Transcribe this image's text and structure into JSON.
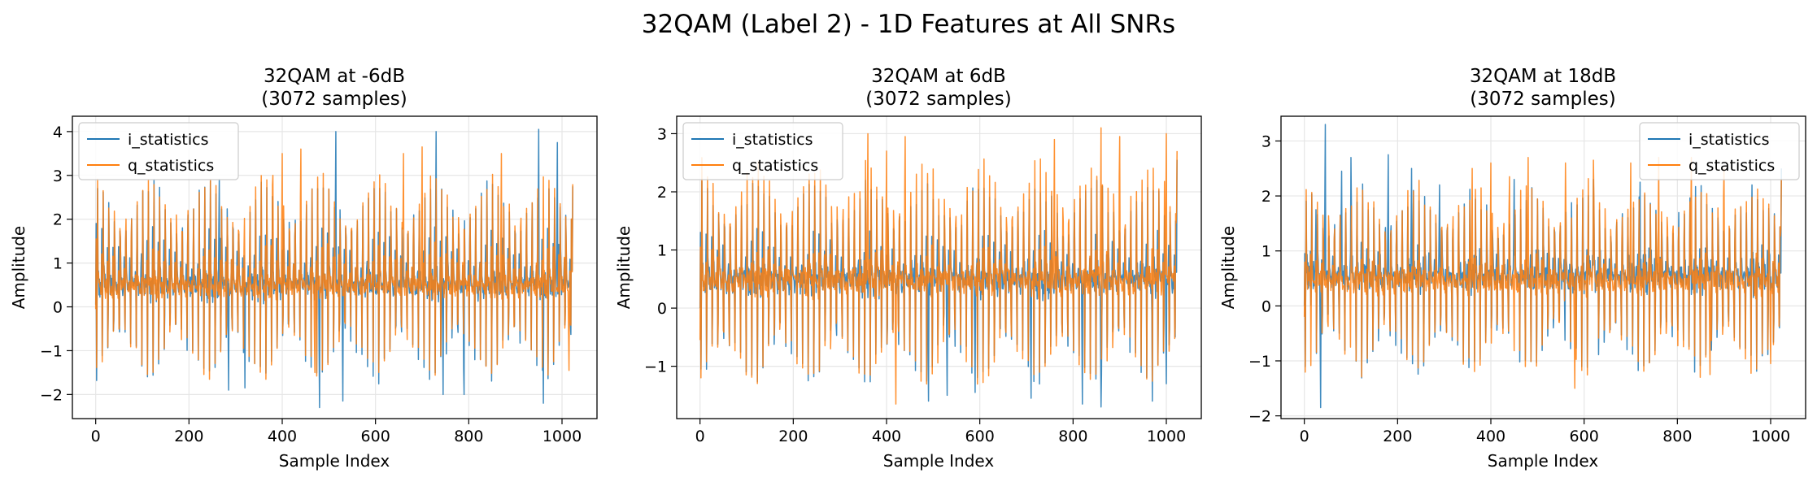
{
  "figure": {
    "suptitle": "32QAM (Label 2) - 1D Features at All SNRs"
  },
  "colors": {
    "i_statistics": "#1f77b4",
    "q_statistics": "#ff7f0e",
    "grid": "#e6e6e6",
    "axes": "#000000"
  },
  "chart_data": [
    {
      "type": "line",
      "title_line1": "32QAM at -6dB",
      "title_line2": "(3072 samples)",
      "xlabel": "Sample Index",
      "ylabel": "Amplitude",
      "xlim": [
        -50,
        1075
      ],
      "ylim": [
        -2.55,
        4.35
      ],
      "xticks": [
        0,
        200,
        400,
        600,
        800,
        1000
      ],
      "yticks": [
        -2,
        -1,
        0,
        1,
        2,
        3,
        4
      ],
      "ytick_labels": [
        "−2",
        "−1",
        "0",
        "1",
        "2",
        "3",
        "4"
      ],
      "grid": true,
      "legend_position": "upper-left",
      "n_points": 1024,
      "period": 12.1,
      "series": [
        {
          "name": "i_statistics",
          "color": "#1f77b4",
          "start_value": 0.05,
          "end_value": 2.75,
          "profile": [
            0.5,
            1.75,
            -1.65,
            0.4,
            2.9,
            0.6,
            0.8,
            0.3,
            0.7,
            0.2,
            0.6,
            0.4
          ],
          "peaks": [
            [
              265,
              2.9
            ],
            [
              285,
              -1.9
            ],
            [
              320,
              -1.85
            ],
            [
              480,
              -2.3
            ],
            [
              515,
              4.0
            ],
            [
              530,
              -2.15
            ],
            [
              730,
              4.0
            ],
            [
              745,
              -2.0
            ],
            [
              790,
              -2.0
            ],
            [
              950,
              4.05
            ],
            [
              960,
              -2.2
            ],
            [
              990,
              3.75
            ],
            [
              1005,
              1.1
            ]
          ]
        },
        {
          "name": "q_statistics",
          "color": "#ff7f0e",
          "start_value": -0.05,
          "end_value": 2.8,
          "profile": [
            0.3,
            1.4,
            -1.6,
            0.5,
            3.0,
            0.55,
            0.7,
            0.4,
            0.6,
            0.3,
            0.5,
            0.45
          ],
          "peaks": [
            [
              380,
              3.0
            ],
            [
              400,
              3.5
            ],
            [
              440,
              3.6
            ],
            [
              470,
              -1.5
            ],
            [
              660,
              3.5
            ],
            [
              700,
              3.65
            ],
            [
              870,
              3.5
            ],
            [
              1015,
              -1.45
            ]
          ]
        }
      ]
    },
    {
      "type": "line",
      "title_line1": "32QAM at 6dB",
      "title_line2": "(3072 samples)",
      "xlabel": "Sample Index",
      "ylabel": "Amplitude",
      "xlim": [
        -50,
        1075
      ],
      "ylim": [
        -1.9,
        3.3
      ],
      "xticks": [
        0,
        200,
        400,
        600,
        800,
        1000
      ],
      "yticks": [
        -1,
        0,
        1,
        2,
        3
      ],
      "ytick_labels": [
        "−1",
        "0",
        "1",
        "2",
        "3"
      ],
      "grid": true,
      "legend_position": "upper-left",
      "n_points": 1024,
      "period": 12.1,
      "series": [
        {
          "name": "i_statistics",
          "color": "#1f77b4",
          "start_value": 0.0,
          "end_value": 2.55,
          "profile": [
            0.45,
            1.25,
            -1.25,
            0.3,
            2.2,
            0.5,
            0.75,
            0.35,
            0.6,
            0.25,
            0.55,
            0.4
          ],
          "peaks": [
            [
              490,
              -1.6
            ],
            [
              530,
              -1.5
            ],
            [
              590,
              -1.45
            ],
            [
              710,
              -1.55
            ],
            [
              820,
              -1.65
            ],
            [
              860,
              -1.7
            ],
            [
              970,
              -1.6
            ],
            [
              1000,
              -1.3
            ]
          ]
        },
        {
          "name": "q_statistics",
          "color": "#ff7f0e",
          "start_value": -0.55,
          "end_value": 2.7,
          "profile": [
            0.3,
            1.0,
            -1.3,
            0.4,
            2.5,
            0.5,
            0.65,
            0.45,
            0.55,
            0.35,
            0.5,
            0.45
          ],
          "peaks": [
            [
              360,
              3.0
            ],
            [
              400,
              2.7
            ],
            [
              420,
              -1.65
            ],
            [
              440,
              2.95
            ],
            [
              760,
              2.9
            ],
            [
              860,
              3.1
            ],
            [
              900,
              2.95
            ],
            [
              1000,
              3.0
            ],
            [
              1030,
              2.75
            ]
          ]
        }
      ]
    },
    {
      "type": "line",
      "title_line1": "32QAM at 18dB",
      "title_line2": "(3072 samples)",
      "xlabel": "Sample Index",
      "ylabel": "Amplitude",
      "xlim": [
        -50,
        1075
      ],
      "ylim": [
        -2.05,
        3.45
      ],
      "xticks": [
        0,
        200,
        400,
        600,
        800,
        1000
      ],
      "yticks": [
        -2,
        -1,
        0,
        1,
        2,
        3
      ],
      "ytick_labels": [
        "−2",
        "−1",
        "0",
        "1",
        "2",
        "3"
      ],
      "grid": true,
      "legend_position": "upper-right",
      "n_points": 1024,
      "period": 12.1,
      "series": [
        {
          "name": "i_statistics",
          "color": "#1f77b4",
          "start_value": 0.0,
          "end_value": 2.5,
          "profile": [
            0.5,
            1.0,
            -1.2,
            0.4,
            2.1,
            0.6,
            0.9,
            0.3,
            0.7,
            0.35,
            0.6,
            0.45
          ],
          "peaks": [
            [
              15,
              0.95
            ],
            [
              25,
              1.75
            ],
            [
              35,
              -1.85
            ],
            [
              45,
              3.3
            ],
            [
              80,
              2.45
            ],
            [
              100,
              2.7
            ],
            [
              180,
              2.75
            ],
            [
              230,
              2.5
            ],
            [
              290,
              2.2
            ],
            [
              450,
              2.3
            ],
            [
              620,
              2.3
            ],
            [
              720,
              2.25
            ],
            [
              960,
              2.2
            ]
          ]
        },
        {
          "name": "q_statistics",
          "color": "#ff7f0e",
          "start_value": -0.2,
          "end_value": 2.3,
          "profile": [
            0.3,
            0.85,
            -1.2,
            0.5,
            2.2,
            0.55,
            0.6,
            0.4,
            0.55,
            0.35,
            0.5,
            0.45
          ],
          "peaks": [
            [
              360,
              2.5
            ],
            [
              400,
              2.6
            ],
            [
              440,
              2.35
            ],
            [
              480,
              2.7
            ],
            [
              560,
              2.6
            ],
            [
              580,
              -1.5
            ],
            [
              620,
              2.65
            ],
            [
              700,
              2.6
            ],
            [
              760,
              2.7
            ],
            [
              830,
              2.7
            ],
            [
              870,
              -1.25
            ],
            [
              900,
              2.5
            ],
            [
              1000,
              -1.05
            ],
            [
              1040,
              2.35
            ]
          ]
        }
      ]
    }
  ]
}
